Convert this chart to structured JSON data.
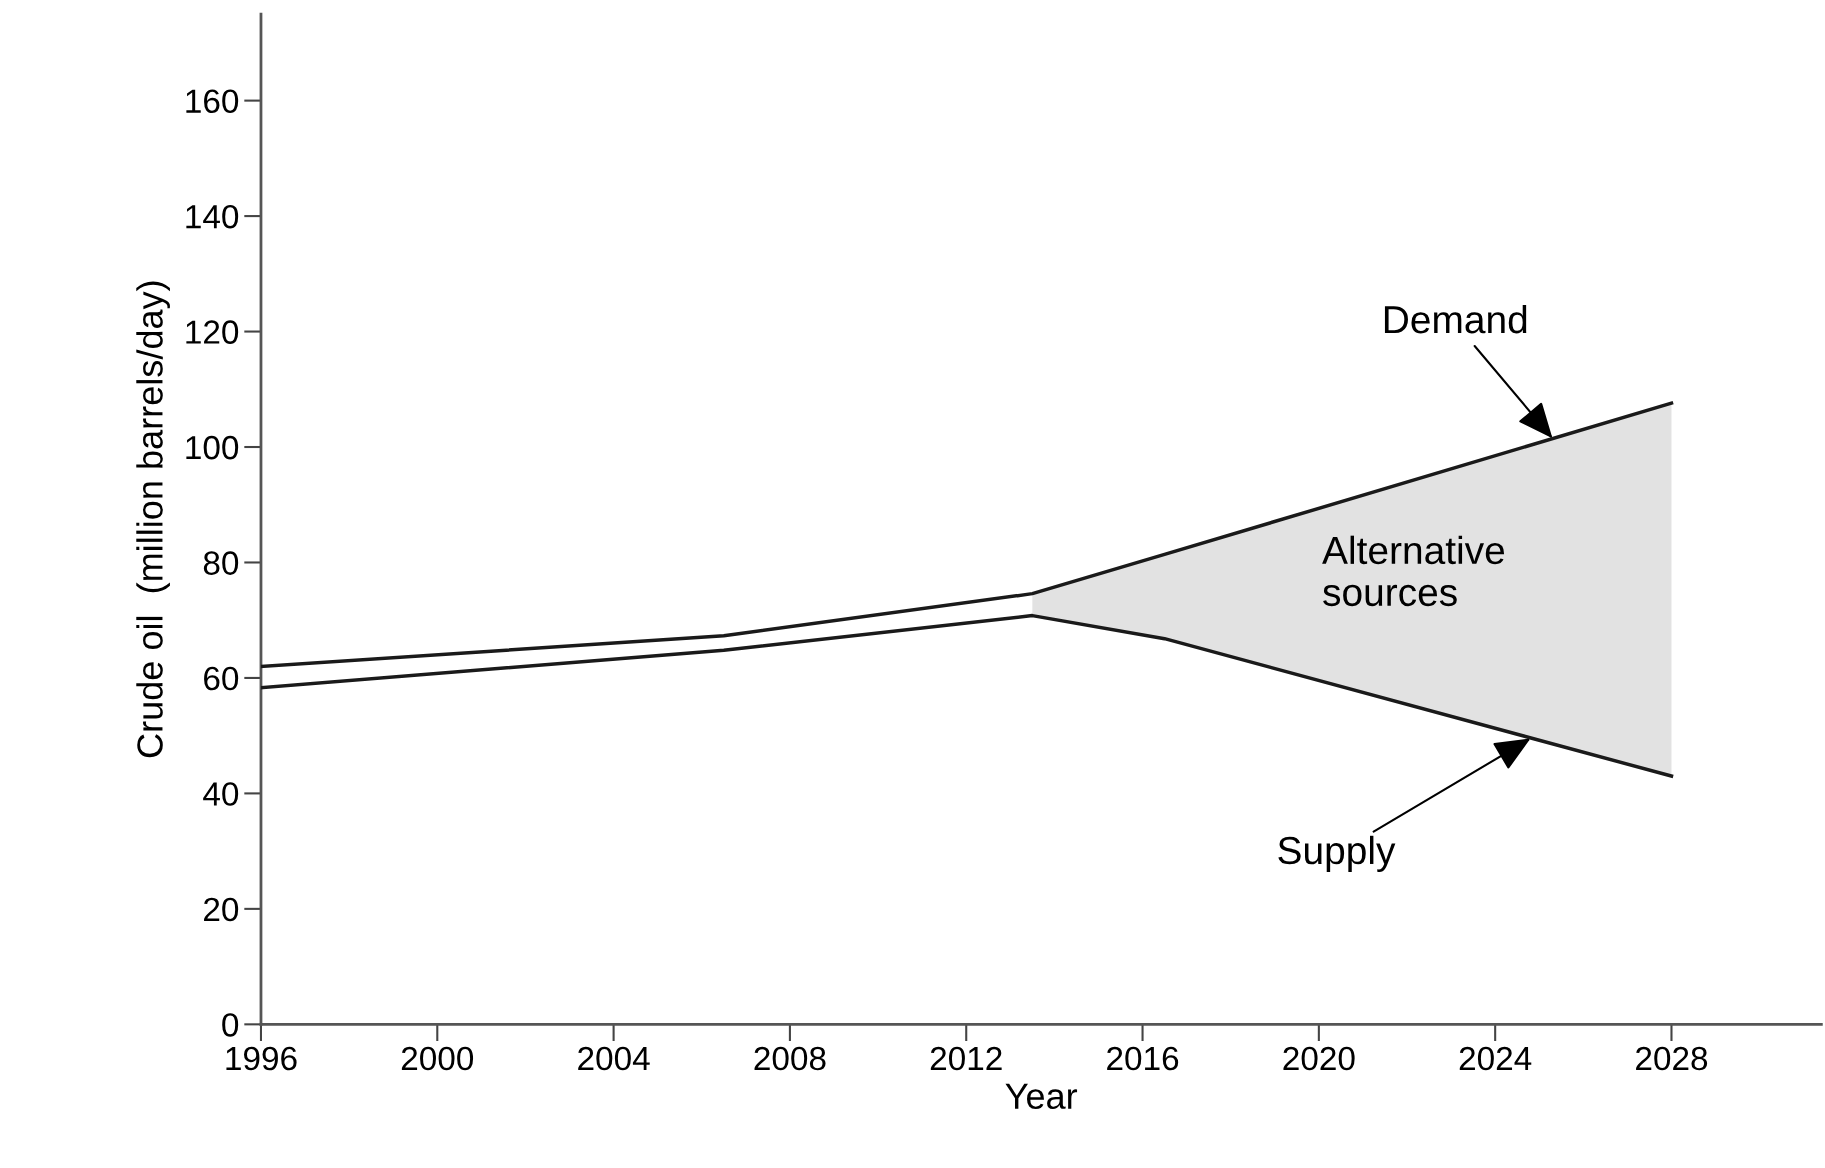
{
  "chart_data": {
    "type": "line",
    "xlabel": "Year",
    "ylabel": "Crude oil  (million barrels/day)",
    "x": [
      1996,
      2006.5,
      2013.5,
      2016.5,
      2028
    ],
    "series": [
      {
        "color": "#1a1a1a",
        "values": [
          62,
          67.3,
          74.6,
          81.4,
          107.6
        ],
        "lower": [
          null,
          null,
          70.8,
          66.8,
          43
        ],
        "upper": [
          null,
          null,
          74.6,
          81.4,
          107.6
        ]
      },
      {
        "color": "#1a1a1a",
        "values": [
          58.3,
          64.8,
          70.8,
          66.8,
          43
        ]
      }
    ],
    "xlim": [
      1996,
      2031.4
    ],
    "ylim": [
      0,
      175
    ],
    "xticks": [
      1996,
      2000,
      2004,
      2008,
      2012,
      2016,
      2020,
      2024,
      2028
    ],
    "yticks": [
      0,
      20,
      40,
      60,
      80,
      100,
      120,
      140,
      160
    ],
    "grid": false,
    "marker": "none",
    "line_style": "solid",
    "annotations": [
      {
        "text": "Demand",
        "x": 2025.3,
        "y": 101.5
      },
      {
        "text": "Supply",
        "x": 2024.8,
        "y": 49.5
      },
      "Alternative\nsources"
    ]
  }
}
